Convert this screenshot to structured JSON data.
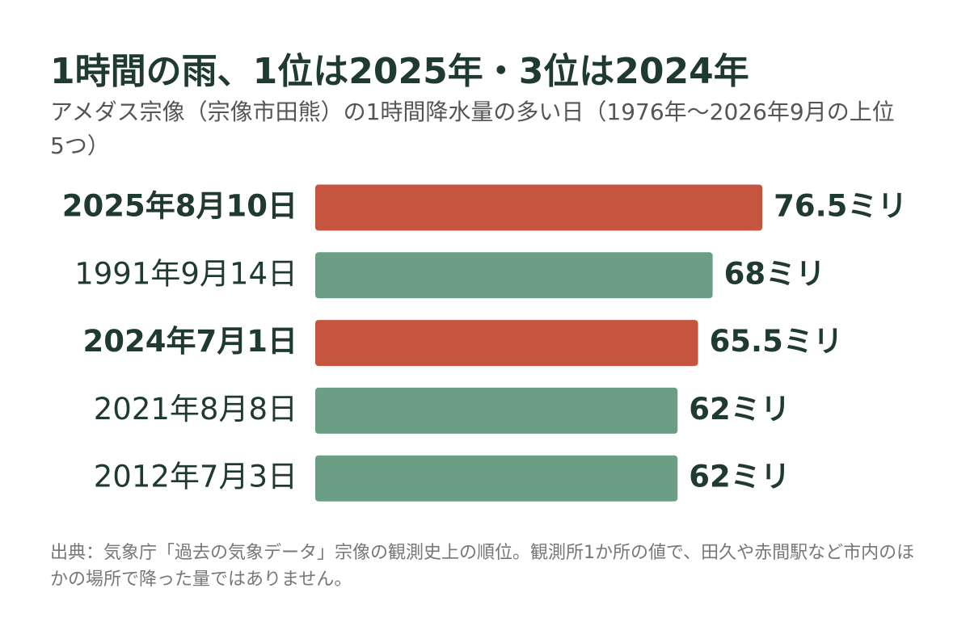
{
  "chart_data": {
    "type": "bar",
    "orientation": "horizontal",
    "title": "1時間の雨、1位は2025年・3位は2024年",
    "subtitle": "アメダス宗像（宗像市田熊）の1時間降水量の多い日（1976年～2026年9月の上位5つ）",
    "categories": [
      "2025年8月10日",
      "1991年9月14日",
      "2024年7月1日",
      "2021年8月8日",
      "2012年7月3日"
    ],
    "values": [
      76.5,
      68,
      65.5,
      62,
      62
    ],
    "value_labels": [
      "76.5ミリ",
      "68ミリ",
      "65.5ミリ",
      "62ミリ",
      "62ミリ"
    ],
    "colors": [
      "#c6553f",
      "#6b9e85",
      "#c6553f",
      "#6b9e85",
      "#6b9e85"
    ],
    "highlight_color": "#c6553f",
    "source": "出典：気象庁「過去の気象データ」宗像の観測史上の順位。観測所1か所の値で、田久や赤間駅など市内のほかの場所で降った量ではありません。"
  }
}
